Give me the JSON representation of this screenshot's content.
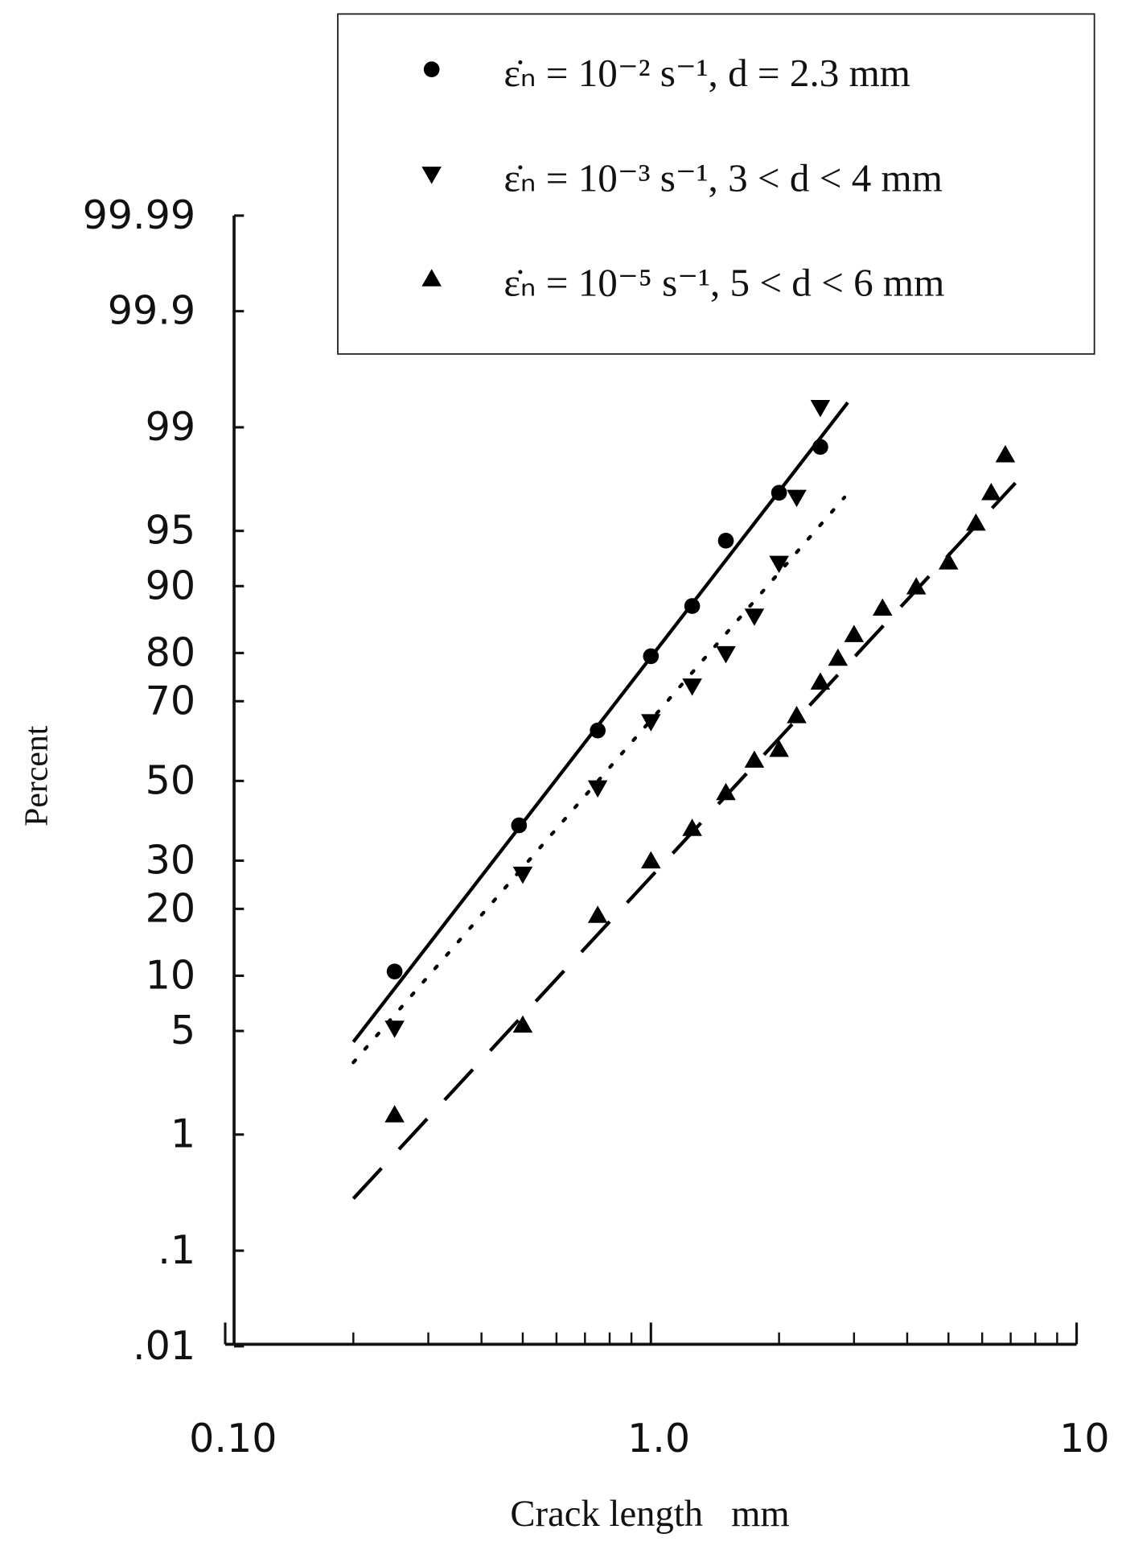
{
  "chart_data": {
    "type": "scatter",
    "xlabel": "Crack length   mm",
    "ylabel": "Percent",
    "xscale": "log",
    "yscale": "probability",
    "xlim": [
      0.1,
      10
    ],
    "xticks": [
      {
        "value": 0.1,
        "label": "0.10"
      },
      {
        "value": 1,
        "label": "1.0"
      },
      10
    ],
    "xminorticks": [
      0.2,
      0.3,
      0.4,
      0.5,
      0.6,
      0.7,
      0.8,
      0.9,
      2,
      3,
      4,
      5,
      6,
      7,
      8,
      9
    ],
    "ylim": [
      0.01,
      99.99
    ],
    "yticks": [
      99.99,
      99.9,
      99,
      95,
      90,
      80,
      70,
      50,
      30,
      20,
      10,
      5,
      1,
      {
        "value": 0.1,
        "label": ".1"
      },
      {
        "value": 0.01,
        "label": ".01"
      }
    ],
    "legend": "top-right",
    "series": [
      {
        "name": "ε̇ₙ = 10⁻² s⁻¹,  d = 2.3 mm",
        "color": "#000000",
        "marker": "circle",
        "linestyle": "solid",
        "x": [
          0.25,
          0.49,
          0.75,
          1.0,
          1.25,
          1.5,
          2.0,
          2.5
        ],
        "values": [
          10.5,
          38.5,
          63,
          79.4,
          87.5,
          94.3,
          97.1,
          98.6
        ],
        "fit_x": [
          0.2,
          2.9
        ],
        "fit_y": [
          4.3,
          99.36
        ]
      },
      {
        "name": "ε̇ₙ = 10⁻³ s⁻¹,  3 < d < 4 mm",
        "color": "#000000",
        "marker": "triangle-down",
        "linestyle": "dotted",
        "x": [
          0.25,
          0.5,
          0.75,
          1.0,
          1.25,
          1.5,
          1.75,
          2.0,
          2.2,
          2.5
        ],
        "values": [
          5.2,
          27,
          48.2,
          65.2,
          73.4,
          79.9,
          86.1,
          92.4,
          96.9,
          99.3
        ],
        "fit_x": [
          0.2,
          2.85
        ],
        "fit_y": [
          3.2,
          96.9
        ]
      },
      {
        "name": "ε̇ₙ = 10⁻⁵ s⁻¹,  5 < d < 6 mm",
        "color": "#000000",
        "marker": "triangle-up",
        "linestyle": "dashed",
        "x": [
          0.25,
          0.5,
          0.75,
          1.0,
          1.25,
          1.5,
          1.75,
          2.0,
          2.2,
          2.5,
          2.75,
          3.0,
          3.5,
          4.2,
          5.0,
          5.8,
          6.3,
          6.8
        ],
        "values": [
          1.4,
          5.4,
          18.8,
          29.9,
          37.7,
          46.9,
          55.4,
          58.2,
          66.6,
          74.2,
          79,
          83.2,
          87.2,
          89.9,
          92.5,
          95.5,
          97.1,
          98.4
        ],
        "fit_x": [
          0.2,
          7.18
        ],
        "fit_y": [
          0.3,
          97.5
        ]
      }
    ]
  }
}
